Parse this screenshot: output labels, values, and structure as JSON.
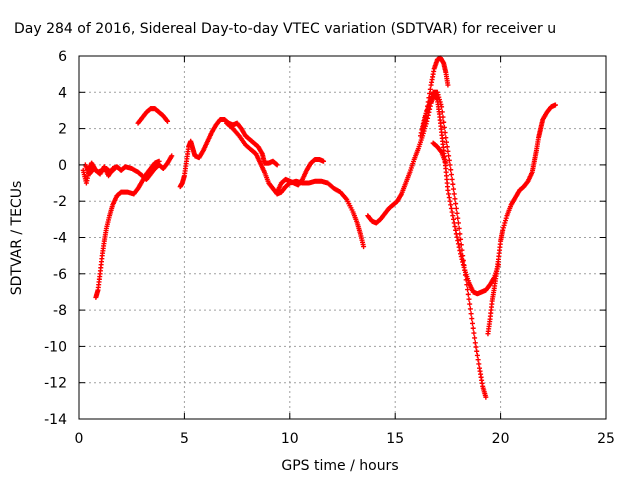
{
  "chart_data": {
    "type": "scatter",
    "title": "Day 284 of 2016, Sidereal Day-to-day VTEC variation (SDTVAR) for receiver u",
    "xlabel": "GPS time / hours",
    "ylabel": "SDTVAR / TECUs",
    "xlim": [
      0,
      25
    ],
    "ylim": [
      -14,
      6
    ],
    "xticks": [
      0,
      5,
      10,
      15,
      20,
      25
    ],
    "yticks": [
      -14,
      -12,
      -10,
      -8,
      -6,
      -4,
      -2,
      0,
      2,
      4,
      6
    ],
    "grid": true,
    "legend": "none",
    "marker": "plus",
    "color": "#ff0000",
    "series": [
      {
        "points": [
          [
            0.2,
            -0.3
          ],
          [
            0.35,
            -1.0
          ],
          [
            0.5,
            -0.2
          ],
          [
            0.6,
            0.1
          ],
          [
            0.8,
            -0.3
          ],
          [
            1.0,
            -0.5
          ],
          [
            1.2,
            -0.1
          ],
          [
            1.4,
            -0.6
          ],
          [
            1.6,
            -0.2
          ],
          [
            1.8,
            -0.1
          ],
          [
            2.0,
            -0.3
          ],
          [
            2.2,
            -0.1
          ],
          [
            2.5,
            -0.2
          ],
          [
            2.8,
            -0.4
          ],
          [
            3.0,
            -0.6
          ],
          [
            3.2,
            -0.8
          ],
          [
            3.4,
            -0.5
          ],
          [
            3.6,
            -0.2
          ],
          [
            3.8,
            0.0
          ],
          [
            4.0,
            -0.2
          ],
          [
            4.2,
            0.1
          ],
          [
            4.4,
            0.5
          ]
        ]
      },
      {
        "points": [
          [
            0.8,
            -7.3
          ],
          [
            0.9,
            -6.9
          ],
          [
            1.0,
            -6.0
          ],
          [
            1.1,
            -5.0
          ],
          [
            1.2,
            -4.2
          ],
          [
            1.3,
            -3.5
          ],
          [
            1.45,
            -2.8
          ],
          [
            1.6,
            -2.2
          ],
          [
            1.8,
            -1.7
          ],
          [
            2.0,
            -1.5
          ],
          [
            2.3,
            -1.5
          ],
          [
            2.6,
            -1.6
          ],
          [
            2.8,
            -1.3
          ],
          [
            3.0,
            -0.9
          ],
          [
            3.2,
            -0.5
          ],
          [
            3.4,
            -0.2
          ],
          [
            3.6,
            0.1
          ],
          [
            3.8,
            0.2
          ]
        ]
      },
      {
        "points": [
          [
            0.3,
            0.0
          ],
          [
            0.5,
            -0.5
          ],
          [
            0.7,
            -0.2
          ],
          [
            0.9,
            -0.4
          ],
          [
            1.1,
            -0.3
          ],
          [
            1.3,
            -0.2
          ],
          [
            1.5,
            -0.4
          ],
          [
            1.7,
            -0.2
          ]
        ]
      },
      {
        "points": [
          [
            2.8,
            2.3
          ],
          [
            3.0,
            2.6
          ],
          [
            3.2,
            2.9
          ],
          [
            3.4,
            3.1
          ],
          [
            3.6,
            3.1
          ],
          [
            3.8,
            2.9
          ],
          [
            4.0,
            2.7
          ],
          [
            4.2,
            2.4
          ]
        ]
      },
      {
        "points": [
          [
            4.8,
            -1.2
          ],
          [
            4.9,
            -1.0
          ],
          [
            5.0,
            -0.6
          ],
          [
            5.1,
            0.2
          ],
          [
            5.2,
            1.0
          ],
          [
            5.3,
            1.3
          ],
          [
            5.4,
            0.9
          ],
          [
            5.5,
            0.5
          ],
          [
            5.7,
            0.4
          ],
          [
            5.9,
            0.8
          ],
          [
            6.1,
            1.3
          ],
          [
            6.3,
            1.8
          ],
          [
            6.5,
            2.2
          ],
          [
            6.7,
            2.5
          ],
          [
            6.9,
            2.5
          ],
          [
            7.1,
            2.3
          ],
          [
            7.3,
            2.2
          ],
          [
            7.5,
            2.3
          ],
          [
            7.7,
            2.0
          ],
          [
            7.9,
            1.6
          ],
          [
            8.1,
            1.4
          ],
          [
            8.3,
            1.2
          ],
          [
            8.5,
            1.0
          ],
          [
            8.7,
            0.6
          ],
          [
            8.8,
            0.1
          ],
          [
            9.0,
            0.1
          ],
          [
            9.2,
            0.2
          ],
          [
            9.4,
            0.0
          ]
        ]
      },
      {
        "points": [
          [
            7.0,
            2.3
          ],
          [
            7.3,
            2.0
          ],
          [
            7.6,
            1.6
          ],
          [
            7.9,
            1.1
          ],
          [
            8.2,
            0.8
          ],
          [
            8.4,
            0.6
          ],
          [
            8.6,
            0.1
          ],
          [
            8.8,
            -0.4
          ],
          [
            9.0,
            -1.0
          ],
          [
            9.2,
            -1.3
          ],
          [
            9.4,
            -1.6
          ],
          [
            9.6,
            -1.5
          ],
          [
            9.8,
            -1.2
          ],
          [
            10.0,
            -1.0
          ],
          [
            10.3,
            -0.9
          ],
          [
            10.6,
            -1.0
          ],
          [
            10.9,
            -1.0
          ],
          [
            11.2,
            -0.9
          ],
          [
            11.5,
            -0.9
          ],
          [
            11.8,
            -1.0
          ],
          [
            12.1,
            -1.3
          ],
          [
            12.4,
            -1.5
          ],
          [
            12.7,
            -1.9
          ],
          [
            13.0,
            -2.6
          ],
          [
            13.2,
            -3.2
          ],
          [
            13.35,
            -3.8
          ],
          [
            13.5,
            -4.5
          ]
        ]
      },
      {
        "points": [
          [
            9.4,
            -1.5
          ],
          [
            9.6,
            -1.0
          ],
          [
            9.8,
            -0.8
          ],
          [
            10.0,
            -0.9
          ],
          [
            10.2,
            -1.0
          ],
          [
            10.4,
            -1.1
          ],
          [
            10.6,
            -0.8
          ],
          [
            10.8,
            -0.3
          ],
          [
            11.0,
            0.1
          ],
          [
            11.2,
            0.3
          ],
          [
            11.4,
            0.3
          ],
          [
            11.6,
            0.2
          ]
        ]
      },
      {
        "points": [
          [
            13.7,
            -2.8
          ],
          [
            13.9,
            -3.1
          ],
          [
            14.1,
            -3.2
          ],
          [
            14.3,
            -3.0
          ],
          [
            14.5,
            -2.7
          ],
          [
            14.7,
            -2.4
          ],
          [
            14.9,
            -2.2
          ],
          [
            15.1,
            -2.0
          ],
          [
            15.3,
            -1.6
          ],
          [
            15.5,
            -1.0
          ],
          [
            15.7,
            -0.4
          ],
          [
            15.9,
            0.3
          ],
          [
            16.1,
            0.9
          ],
          [
            16.3,
            1.6
          ],
          [
            16.5,
            2.4
          ],
          [
            16.7,
            3.4
          ],
          [
            16.85,
            3.9
          ],
          [
            17.0,
            3.6
          ],
          [
            17.1,
            2.8
          ],
          [
            17.2,
            1.8
          ],
          [
            17.3,
            0.8
          ],
          [
            17.4,
            -0.2
          ],
          [
            17.5,
            -1.4
          ],
          [
            17.7,
            -2.6
          ],
          [
            17.9,
            -3.8
          ],
          [
            18.1,
            -4.9
          ],
          [
            18.3,
            -5.8
          ],
          [
            18.5,
            -6.5
          ],
          [
            18.7,
            -7.0
          ],
          [
            18.9,
            -7.1
          ],
          [
            19.1,
            -7.0
          ],
          [
            19.3,
            -6.9
          ],
          [
            19.5,
            -6.6
          ],
          [
            19.7,
            -6.2
          ],
          [
            19.9,
            -5.5
          ]
        ]
      },
      {
        "points": [
          [
            16.2,
            1.6
          ],
          [
            16.4,
            2.6
          ],
          [
            16.6,
            3.3
          ],
          [
            16.8,
            4.0
          ],
          [
            17.0,
            4.0
          ],
          [
            17.2,
            3.2
          ],
          [
            17.4,
            1.5
          ],
          [
            17.6,
            0.0
          ],
          [
            17.8,
            -1.6
          ],
          [
            18.0,
            -3.2
          ],
          [
            18.2,
            -5.0
          ],
          [
            18.4,
            -6.6
          ],
          [
            18.6,
            -8.2
          ],
          [
            18.8,
            -9.8
          ],
          [
            19.0,
            -11.2
          ],
          [
            19.15,
            -12.2
          ],
          [
            19.3,
            -12.8
          ]
        ]
      },
      {
        "points": [
          [
            16.3,
            2.0
          ],
          [
            16.5,
            3.0
          ],
          [
            16.7,
            4.4
          ],
          [
            16.85,
            5.3
          ],
          [
            17.0,
            5.8
          ],
          [
            17.15,
            5.9
          ],
          [
            17.3,
            5.6
          ],
          [
            17.4,
            5.1
          ],
          [
            17.5,
            4.4
          ]
        ]
      },
      {
        "points": [
          [
            16.8,
            1.2
          ],
          [
            17.0,
            1.0
          ],
          [
            17.2,
            0.7
          ],
          [
            17.4,
            0.1
          ]
        ]
      },
      {
        "points": [
          [
            19.4,
            -9.3
          ],
          [
            19.5,
            -8.5
          ],
          [
            19.6,
            -7.5
          ],
          [
            19.7,
            -6.8
          ],
          [
            19.8,
            -6.0
          ],
          [
            19.9,
            -5.2
          ],
          [
            20.0,
            -4.2
          ],
          [
            20.1,
            -3.6
          ],
          [
            20.3,
            -2.8
          ],
          [
            20.5,
            -2.2
          ],
          [
            20.7,
            -1.8
          ],
          [
            20.9,
            -1.4
          ],
          [
            21.1,
            -1.2
          ],
          [
            21.3,
            -0.9
          ],
          [
            21.5,
            -0.4
          ],
          [
            21.6,
            0.2
          ],
          [
            21.7,
            0.8
          ],
          [
            21.8,
            1.5
          ],
          [
            21.9,
            2.0
          ],
          [
            22.0,
            2.5
          ],
          [
            22.2,
            2.9
          ],
          [
            22.4,
            3.2
          ],
          [
            22.6,
            3.3
          ]
        ]
      }
    ]
  }
}
